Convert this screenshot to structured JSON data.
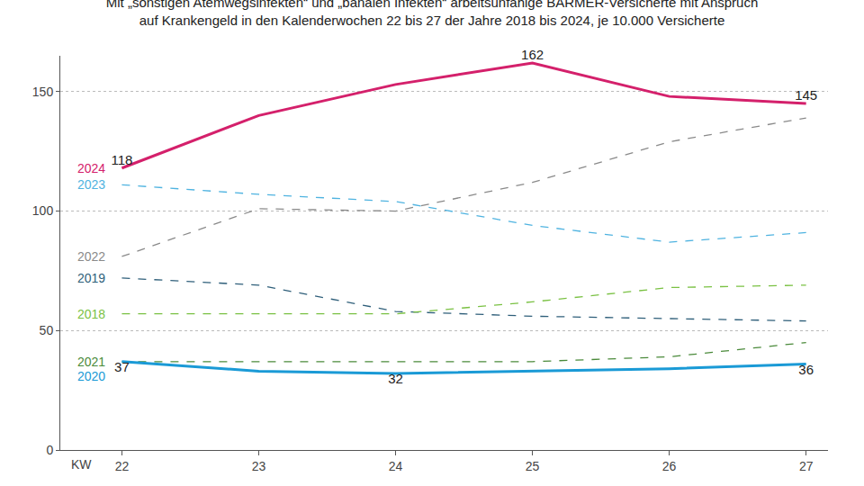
{
  "chart_data": {
    "type": "line",
    "title": "Mit „sonstigen Atemwegsinfekten“ und „banalen Infekten“ arbeitsunfähige BARMER-Versicherte mit Anspruch\nauf Krankengeld in den Kalenderwochen 22 bis 27 der Jahre 2018 bis 2024, je 10.000 Versicherte",
    "x_label": "KW",
    "x": [
      22,
      23,
      24,
      25,
      26,
      27
    ],
    "xlim": [
      21.55,
      27.16
    ],
    "xticks": [
      22,
      23,
      24,
      25,
      26,
      27
    ],
    "ylim": [
      0,
      165
    ],
    "yticks": [
      0,
      50,
      100,
      150
    ],
    "grid": true,
    "series": [
      {
        "name": "2024",
        "color": "#d4206b",
        "line_style": "solid",
        "values": [
          118,
          140,
          153,
          162,
          148,
          145
        ],
        "value_labels": [
          "118",
          null,
          null,
          "162",
          null,
          "145"
        ]
      },
      {
        "name": "2023",
        "color": "#4fb3e0",
        "line_style": "dashed",
        "values": [
          111,
          107,
          104,
          94,
          87,
          91
        ]
      },
      {
        "name": "2022",
        "color": "#8a8a8a",
        "line_style": "dashed",
        "values": [
          81,
          101,
          100,
          112,
          129,
          139
        ]
      },
      {
        "name": "2019",
        "color": "#2f5f7a",
        "line_style": "dashed",
        "values": [
          72,
          69,
          58,
          56,
          55,
          54
        ]
      },
      {
        "name": "2018",
        "color": "#7ac143",
        "line_style": "dashed",
        "values": [
          57,
          57,
          57,
          62,
          68,
          69
        ]
      },
      {
        "name": "2021",
        "color": "#4a8a3a",
        "line_style": "dashed",
        "values": [
          37,
          37,
          37,
          37,
          39,
          45
        ]
      },
      {
        "name": "2020",
        "color": "#1a9ad6",
        "line_style": "solid",
        "values": [
          37,
          33,
          32,
          33,
          34,
          36
        ],
        "value_labels": [
          "37",
          null,
          "32",
          null,
          null,
          "36"
        ]
      }
    ]
  }
}
